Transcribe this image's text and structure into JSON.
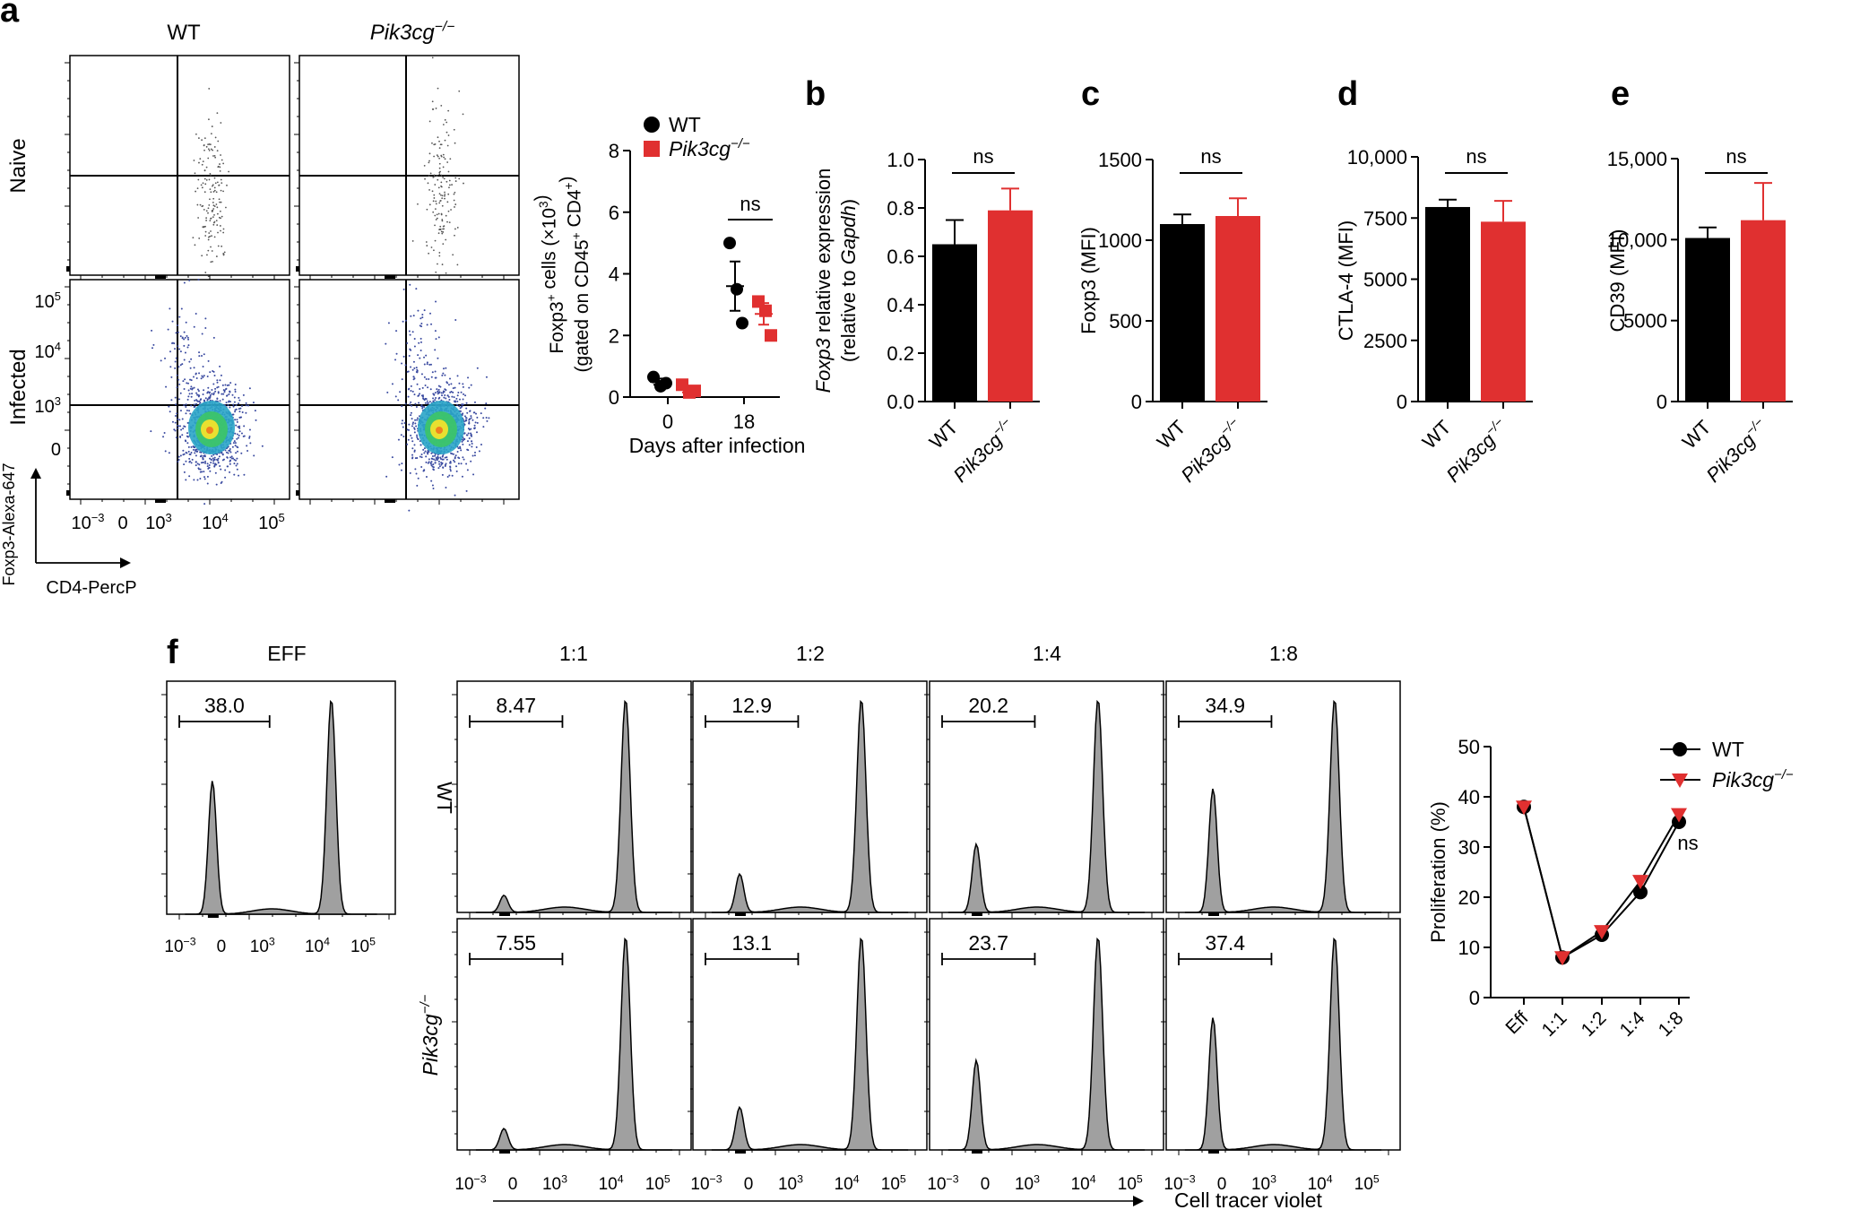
{
  "panel_labels": {
    "a": "a",
    "b": "b",
    "c": "c",
    "d": "d",
    "e": "e",
    "f": "f"
  },
  "colors": {
    "wt": "#000000",
    "ko": "#e03030",
    "hist_fill": "#a0a0a0"
  },
  "genotype": {
    "wt": "WT",
    "ko": "Pik3cg",
    "ko_sup": "−/−"
  },
  "flow_a": {
    "rows": [
      "Naive",
      "Infected"
    ],
    "y_ticks": [
      "10",
      "10",
      "10",
      "0"
    ],
    "y_tick_exps": [
      "5",
      "4",
      "3",
      ""
    ],
    "x_ticks": [
      "10",
      "0",
      "10",
      "10",
      "10"
    ],
    "x_tick_exps": [
      "−3",
      "",
      "3",
      "4",
      "5"
    ],
    "y_axis_label": "Foxp3-Alexa-647",
    "x_axis_label": "CD4-PercP"
  },
  "chart_data": [
    {
      "id": "a-scatter",
      "type": "scatter",
      "ylabel": "Foxp3+ cells (×10³) (gated on CD45+ CD4+)",
      "ylabel_line1": "Foxp3",
      "ylabel_line1_sup": "+",
      "ylabel_line1_rest": " cells (×10",
      "ylabel_line1_sup2": "3",
      "ylabel_line1_end": ")",
      "ylabel_line2": "(gated on CD45",
      "ylabel_line2_sup": "+",
      "ylabel_line2_mid": " CD4",
      "ylabel_line2_sup2": "+",
      "ylabel_line2_end": ")",
      "xlabel": "Days after infection",
      "categories": [
        "0",
        "18"
      ],
      "ylim": [
        0,
        8
      ],
      "yticks": [
        0,
        2,
        4,
        6,
        8
      ],
      "series": [
        {
          "name": "WT",
          "marker": "circle",
          "points": [
            [
              0,
              0.65
            ],
            [
              0,
              0.35
            ],
            [
              0,
              0.45
            ],
            [
              18,
              5.0
            ],
            [
              18,
              3.5
            ],
            [
              18,
              2.4
            ]
          ],
          "means": [
            0.5,
            3.6
          ],
          "sem": [
            0.1,
            0.8
          ]
        },
        {
          "name": "Pik3cg−/−",
          "marker": "square",
          "points": [
            [
              0,
              0.4
            ],
            [
              0,
              0.15
            ],
            [
              0,
              0.2
            ],
            [
              18,
              3.1
            ],
            [
              18,
              2.8
            ],
            [
              18,
              2.0
            ]
          ],
          "means": [
            0.25,
            2.7
          ],
          "sem": [
            0.1,
            0.35
          ]
        }
      ],
      "annotation": "ns"
    },
    {
      "id": "b",
      "type": "bar",
      "ylabel_italic": "Foxp3",
      "ylabel_rest": " relative expression",
      "ylabel_line2": "(relative to ",
      "ylabel_line2_italic": "Gapdh",
      "ylabel_line2_end": ")",
      "ylim": [
        0,
        1.0
      ],
      "yticks": [
        "0.0",
        "0.2",
        "0.4",
        "0.6",
        "0.8",
        "1.0"
      ],
      "categories": [
        "WT",
        "Pik3cg−/−"
      ],
      "values": [
        0.65,
        0.79
      ],
      "errors": [
        0.1,
        0.09
      ],
      "annotation": "ns"
    },
    {
      "id": "c",
      "type": "bar",
      "ylabel": "Foxp3 (MFI)",
      "ylim": [
        0,
        1500
      ],
      "yticks": [
        "0",
        "500",
        "1000",
        "1500"
      ],
      "categories": [
        "WT",
        "Pik3cg−/−"
      ],
      "values": [
        1100,
        1150
      ],
      "errors": [
        60,
        110
      ],
      "annotation": "ns"
    },
    {
      "id": "d",
      "type": "bar",
      "ylabel": "CTLA-4 (MFI)",
      "ylim": [
        0,
        10000
      ],
      "yticks": [
        "0",
        "2500",
        "5000",
        "7500",
        "10,000"
      ],
      "categories": [
        "WT",
        "Pik3cg−/−"
      ],
      "values": [
        7950,
        7350
      ],
      "errors": [
        300,
        850
      ],
      "annotation": "ns"
    },
    {
      "id": "e",
      "type": "bar",
      "ylabel": "CD39 (MFI)",
      "ylim": [
        0,
        15000
      ],
      "yticks": [
        "0",
        "5000",
        "10,000",
        "15,000"
      ],
      "categories": [
        "WT",
        "Pik3cg−/−"
      ],
      "values": [
        10100,
        11200
      ],
      "errors": [
        650,
        2300
      ],
      "annotation": "ns"
    },
    {
      "id": "f-hist",
      "type": "histogram",
      "xlabel": "Cell tracer violet",
      "x_ticks": [
        "10",
        "0",
        "10",
        "10",
        "10"
      ],
      "x_tick_exps": [
        "−3",
        "",
        "3",
        "4",
        "5"
      ],
      "columns": [
        "EFF",
        "1:1",
        "1:2",
        "1:4",
        "1:8"
      ],
      "rows": [
        "WT",
        "Pik3cg−/−"
      ],
      "eff_value": "38.0",
      "values": [
        [
          "8.47",
          "12.9",
          "20.2",
          "34.9"
        ],
        [
          "7.55",
          "13.1",
          "23.7",
          "37.4"
        ]
      ],
      "low_peak_rel": [
        [
          0.08,
          0.18,
          0.32,
          0.58
        ],
        [
          0.1,
          0.2,
          0.42,
          0.62
        ]
      ],
      "eff_low_peak_rel": 0.62
    },
    {
      "id": "f-line",
      "type": "line",
      "ylabel": "Proliferation (%)",
      "categories": [
        "Eff",
        "1:1",
        "1:2",
        "1:4",
        "1:8"
      ],
      "ylim": [
        0,
        50
      ],
      "yticks": [
        "0",
        "10",
        "20",
        "30",
        "40",
        "50"
      ],
      "series": [
        {
          "name": "WT",
          "marker": "circle",
          "values": [
            38.0,
            8.0,
            12.5,
            21.0,
            35.0
          ]
        },
        {
          "name": "Pik3cg−/−",
          "marker": "triangle",
          "values": [
            38.0,
            8.0,
            13.2,
            23.2,
            36.5
          ]
        }
      ],
      "annotation": "ns"
    }
  ]
}
